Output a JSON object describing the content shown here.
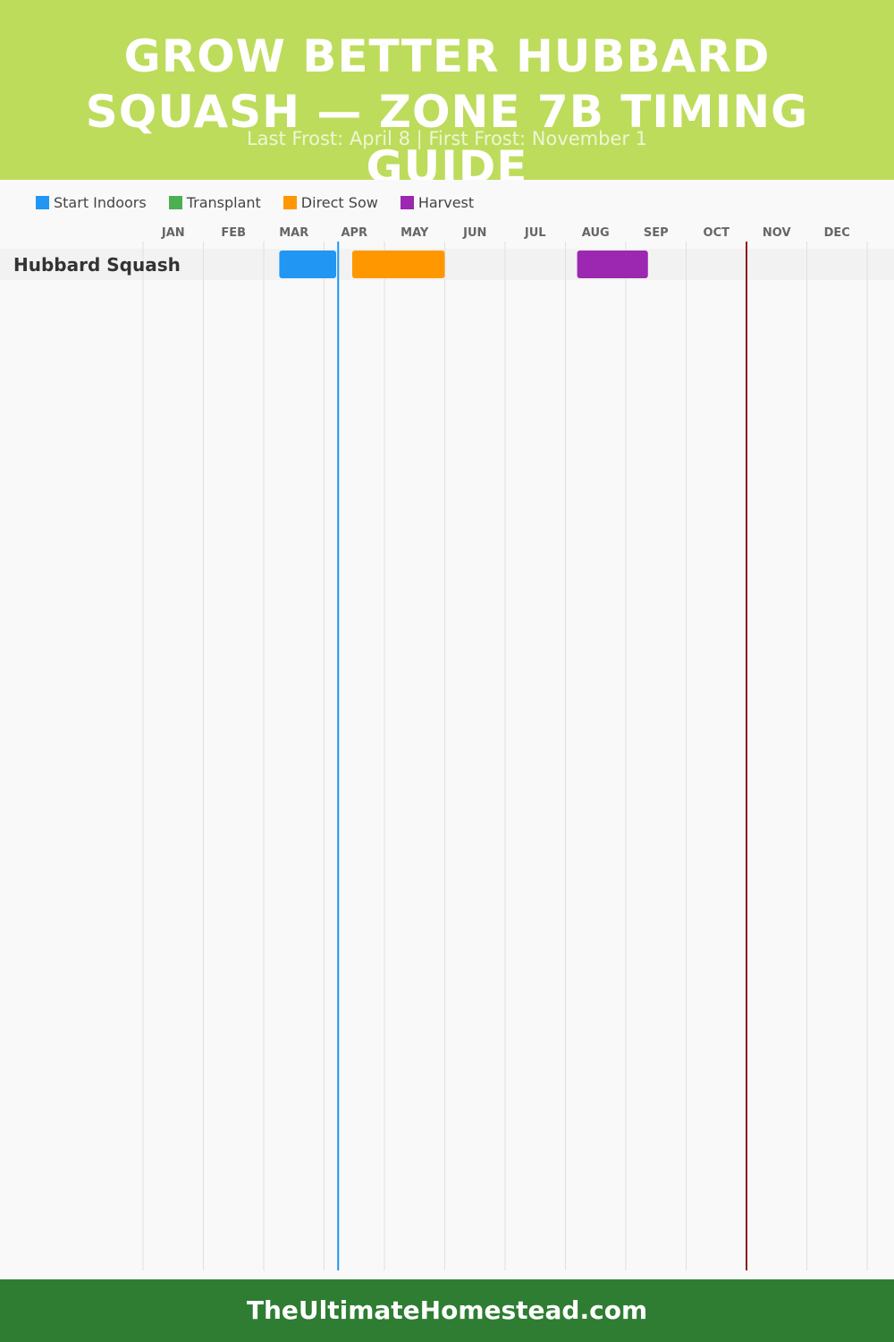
{
  "header": {
    "title": "GROW BETTER HUBBARD SQUASH — ZONE 7B TIMING GUIDE",
    "subtitle": "Last Frost: April 8 | First Frost: November 1"
  },
  "legend": [
    {
      "label": "Start Indoors",
      "color": "#2196f3"
    },
    {
      "label": "Transplant",
      "color": "#4caf50"
    },
    {
      "label": "Direct Sow",
      "color": "#ff9800"
    },
    {
      "label": "Harvest",
      "color": "#9c27b0"
    }
  ],
  "chart_data": {
    "type": "gantt",
    "months": [
      "JAN",
      "FEB",
      "MAR",
      "APR",
      "MAY",
      "JUN",
      "JUL",
      "AUG",
      "SEP",
      "OCT",
      "NOV",
      "DEC"
    ],
    "rows": [
      {
        "crop": "Hubbard Squash",
        "tasks": [
          {
            "task": "Start Indoors",
            "start": "03-09",
            "end": "04-07"
          },
          {
            "task": "Direct Sow",
            "start": "04-15",
            "end": "06-01"
          },
          {
            "task": "Harvest",
            "start": "08-07",
            "end": "09-12"
          }
        ]
      }
    ],
    "frost_lines": [
      {
        "label": "Last Frost",
        "date": "04-08",
        "color": "#2196f3"
      },
      {
        "label": "First Frost",
        "date": "11-01",
        "color": "#8b1a1a"
      }
    ],
    "grid": true,
    "legend_position": "top-left"
  },
  "footer": {
    "site": "TheUltimateHomestead.com"
  }
}
